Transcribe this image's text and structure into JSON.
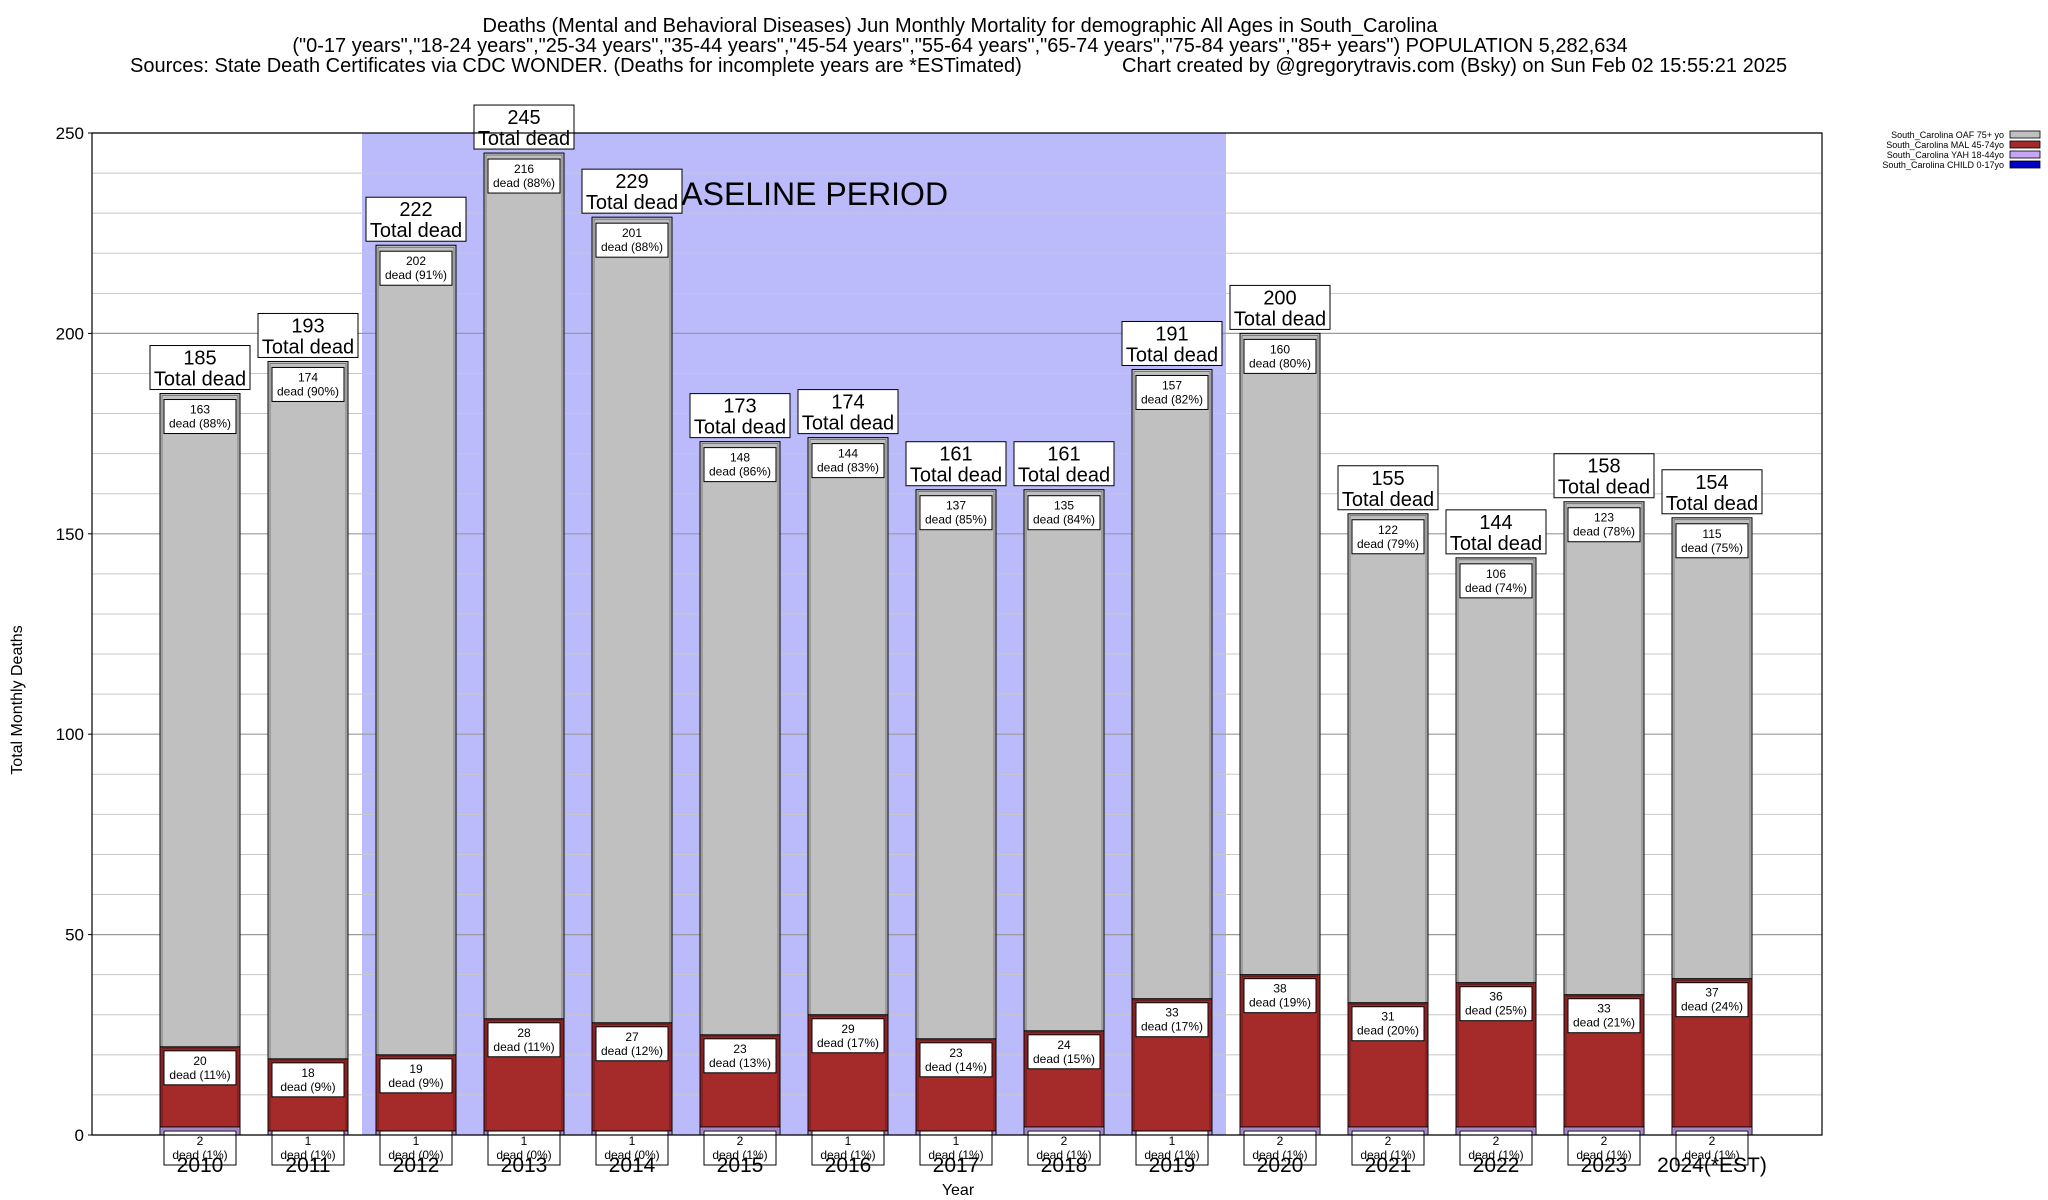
{
  "header": {
    "title_line1": "Deaths (Mental and Behavioral Diseases) Jun Monthly Mortality for demographic All Ages in South_Carolina",
    "title_line2": "(\"0-17 years\",\"18-24 years\",\"25-34 years\",\"35-44 years\",\"45-54 years\",\"55-64 years\",\"65-74 years\",\"75-84 years\",\"85+ years\") POPULATION 5,282,634",
    "sources": "Sources: State Death Certificates via CDC WONDER. (Deaths for incomplete years are *ESTimated)",
    "credit": "Chart created by @gregorytravis.com (Bsky) on Sun Feb 02 15:55:21 2025"
  },
  "chart_data": {
    "type": "bar",
    "stacked": true,
    "xlabel": "Year",
    "ylabel": "Total Monthly Deaths",
    "ylim": [
      0,
      250
    ],
    "yticks": [
      0,
      50,
      100,
      150,
      200,
      250
    ],
    "grid": true,
    "legend_position": "top-right",
    "categories": [
      "2010",
      "2011",
      "2012",
      "2013",
      "2014",
      "2015",
      "2016",
      "2017",
      "2018",
      "2019",
      "2020",
      "2021",
      "2022",
      "2023",
      "2024(*EST)"
    ],
    "totals": [
      185,
      193,
      222,
      245,
      229,
      173,
      174,
      161,
      161,
      191,
      200,
      155,
      144,
      158,
      154
    ],
    "total_label_word": "Total dead",
    "segment_label_word": "dead",
    "series": [
      {
        "name": "South_Carolina CHILD 0-17yo",
        "color": "#0000c8",
        "values": [
          0,
          0,
          0,
          0,
          0,
          0,
          0,
          0,
          0,
          0,
          0,
          0,
          0,
          0,
          0
        ],
        "pcts": [],
        "show_labels": false
      },
      {
        "name": "South_Carolina YAH 18-44yo",
        "color": "#c9a6f5",
        "values": [
          2,
          1,
          1,
          1,
          1,
          2,
          1,
          1,
          2,
          1,
          2,
          2,
          2,
          2,
          2
        ],
        "pcts": [
          "1%",
          "1%",
          "0%",
          "0%",
          "0%",
          "1%",
          "1%",
          "1%",
          "1%",
          "1%",
          "1%",
          "1%",
          "1%",
          "1%",
          "1%"
        ],
        "show_labels": true
      },
      {
        "name": "South_Carolina MAL 45-74yo",
        "color": "#a52a2a",
        "values": [
          20,
          18,
          19,
          28,
          27,
          23,
          29,
          23,
          24,
          33,
          38,
          31,
          36,
          33,
          37
        ],
        "pcts": [
          "11%",
          "9%",
          "9%",
          "11%",
          "12%",
          "13%",
          "17%",
          "14%",
          "15%",
          "17%",
          "19%",
          "20%",
          "25%",
          "21%",
          "24%"
        ],
        "show_labels": true
      },
      {
        "name": "South_Carolina OAF 75+ yo",
        "color": "#c0c0c0",
        "values": [
          163,
          174,
          202,
          216,
          201,
          148,
          144,
          137,
          135,
          157,
          160,
          122,
          106,
          123,
          115
        ],
        "pcts": [
          "88%",
          "90%",
          "91%",
          "88%",
          "88%",
          "86%",
          "83%",
          "85%",
          "84%",
          "82%",
          "80%",
          "79%",
          "74%",
          "78%",
          "75%"
        ],
        "show_labels": true
      }
    ],
    "baseline_period": {
      "label": "BASELINE PERIOD",
      "start": "2012",
      "end": "2019",
      "color": "#bbbbfb"
    }
  }
}
